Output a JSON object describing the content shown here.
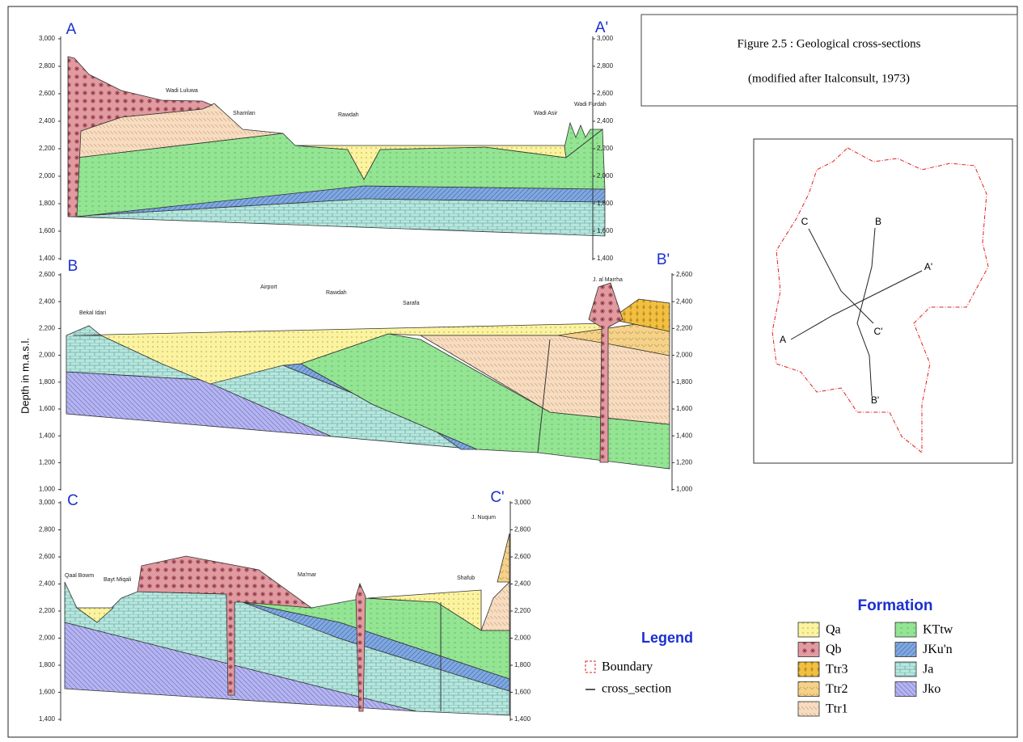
{
  "figure": {
    "title": "Figure 2.5 : Geological cross-sections",
    "subtitle": "(modified after Italconsult, 1973)"
  },
  "y_axis_label": "Depth in m.a.s.l.",
  "sections": [
    {
      "left_label": "A",
      "right_label": "A'",
      "left_ticks": [
        "3,000",
        "2,800",
        "2,600",
        "2,400",
        "2,200",
        "2,000",
        "1,800",
        "1,600",
        "1,400"
      ],
      "right_ticks": [
        "3,000",
        "2,800",
        "2,600",
        "2,400",
        "2,200",
        "2,000",
        "1,800",
        "1,600",
        "1,400"
      ],
      "places": [
        "Wadi Luluwa",
        "Shamlan",
        "Rawdah",
        "Wadi Asir",
        "Wadi Furdah"
      ]
    },
    {
      "left_label": "B",
      "right_label": "B'",
      "left_ticks": [
        "2,600",
        "2,400",
        "2,200",
        "2,000",
        "1,800",
        "1,600",
        "1,400",
        "1,200",
        "1,000"
      ],
      "right_ticks": [
        "2,600",
        "2,400",
        "2,200",
        "2,000",
        "1,800",
        "1,600",
        "1,400",
        "1,200",
        "1,000"
      ],
      "places": [
        "Bekal Idari",
        "Airport",
        "Rawdah",
        "Sarafa",
        "J. al Marrha"
      ]
    },
    {
      "left_label": "C",
      "right_label": "C'",
      "left_ticks": [
        "3,000",
        "2,800",
        "2,600",
        "2,400",
        "2,200",
        "2,000",
        "1,800",
        "1,600",
        "1,400"
      ],
      "right_ticks": [
        "3,000",
        "2,800",
        "2,600",
        "2,400",
        "2,200",
        "2,000",
        "1,800",
        "1,600",
        "1,400"
      ],
      "places": [
        "Qaal Bowm",
        "Bayt Miqali",
        "Ma'mar",
        "Shafub",
        "J. Nuqum"
      ]
    }
  ],
  "map": {
    "labels": [
      "C",
      "B",
      "A'",
      "A",
      "C'",
      "B'"
    ]
  },
  "legend": {
    "title": "Legend",
    "items": [
      "Boundary",
      "cross_section"
    ]
  },
  "formation": {
    "title": "Formation",
    "items": [
      "Qa",
      "Qb",
      "Ttr3",
      "Ttr2",
      "Ttr1",
      "KTtw",
      "JKu'n",
      "Ja",
      "Jko"
    ]
  }
}
